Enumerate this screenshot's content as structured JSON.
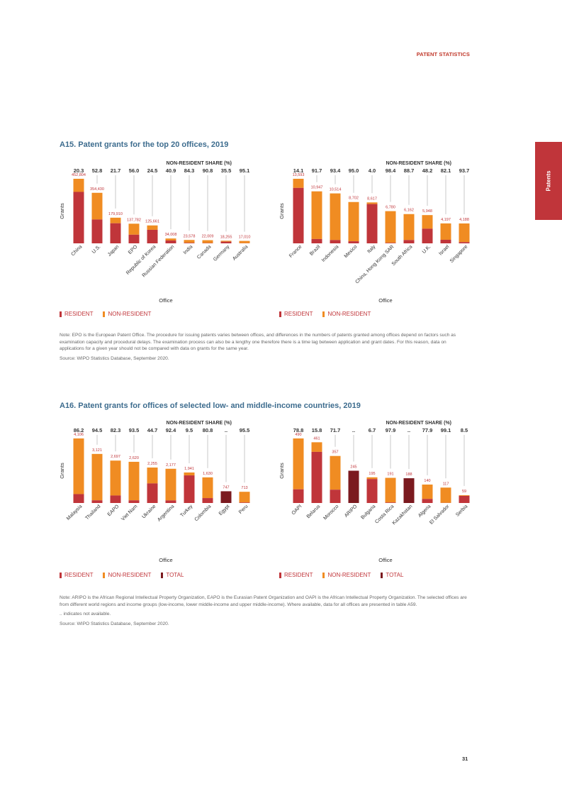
{
  "header": {
    "label": "PATENT STATISTICS"
  },
  "side_tab": {
    "label": "Patents"
  },
  "colors": {
    "resident": "#c0353a",
    "non_resident": "#f08c22",
    "total": "#7b1a1f",
    "title": "#3d6c8e",
    "axis": "#999999"
  },
  "sections": {
    "a15": {
      "title": "A15. Patent grants for the top 20 offices, 2019"
    },
    "a16": {
      "title": "A16. Patent grants for offices of selected low- and middle-income countries, 2019"
    }
  },
  "chart_data": [
    {
      "id": "a15_left",
      "type": "bar",
      "stacked": true,
      "share_title": "NON-RESIDENT SHARE (%)",
      "ylabel": "Grants",
      "xlabel": "Office",
      "categories": [
        "China",
        "U.S.",
        "Japan",
        "EPO",
        "Republic of Korea",
        "Russian Federation",
        "India",
        "Canada",
        "Germany",
        "Australia"
      ],
      "totals": [
        452804,
        354430,
        179910,
        137782,
        125661,
        34008,
        23578,
        22009,
        18255,
        17010
      ],
      "total_labels": [
        "452,804",
        "354,430",
        "179,910",
        "137,782",
        "125,661",
        "34,008",
        "23,578",
        "22,009",
        "18,255",
        "17,010"
      ],
      "nonresident_share": [
        "20.3",
        "52.8",
        "21.7",
        "56.0",
        "24.5",
        "40.9",
        "84.3",
        "90.8",
        "35.5",
        "95.1"
      ],
      "legend": [
        "RESIDENT",
        "NON-RESIDENT"
      ]
    },
    {
      "id": "a15_right",
      "type": "bar",
      "stacked": true,
      "share_title": "NON-RESIDENT SHARE (%)",
      "ylabel": "Grants",
      "xlabel": "Office",
      "categories": [
        "France",
        "Brazil",
        "Indonesia",
        "Mexico",
        "Italy",
        "China, Hong Kong SAR",
        "South Africa",
        "U.K.",
        "Israel",
        "Singapore"
      ],
      "totals": [
        13593,
        10947,
        10514,
        8702,
        8617,
        6780,
        6162,
        5948,
        4197,
        4188
      ],
      "total_labels": [
        "13,593",
        "10,947",
        "10,514",
        "8,702",
        "8,617",
        "6,780",
        "6,162",
        "5,948",
        "4,197",
        "4,188"
      ],
      "nonresident_share": [
        "14.1",
        "91.7",
        "93.4",
        "95.0",
        "4.0",
        "98.4",
        "88.7",
        "48.2",
        "82.1",
        "93.7"
      ],
      "legend": [
        "RESIDENT",
        "NON-RESIDENT"
      ]
    },
    {
      "id": "a16_left",
      "type": "bar",
      "stacked": true,
      "share_title": "NON-RESIDENT SHARE (%)",
      "ylabel": "Grants",
      "xlabel": "Office",
      "categories": [
        "Malaysia",
        "Thailand",
        "EAPO",
        "Viet Nam",
        "Ukraine",
        "Argentina",
        "Turkey",
        "Colombia",
        "Egypt",
        "Peru"
      ],
      "totals": [
        4106,
        3121,
        2697,
        2620,
        2255,
        2177,
        1941,
        1630,
        747,
        713
      ],
      "total_labels": [
        "4,106",
        "3,121",
        "2,697",
        "2,620",
        "2,255",
        "2,177",
        "1,941",
        "1,630",
        "747",
        "713"
      ],
      "nonresident_share": [
        "86.2",
        "94.5",
        "82.3",
        "93.5",
        "44.7",
        "92.4",
        "9.5",
        "80.8",
        "..",
        "95.5"
      ],
      "legend": [
        "RESIDENT",
        "NON-RESIDENT",
        "TOTAL"
      ]
    },
    {
      "id": "a16_right",
      "type": "bar",
      "stacked": true,
      "share_title": "NON-RESIDENT SHARE (%)",
      "ylabel": "Grants",
      "xlabel": "Office",
      "categories": [
        "OAPI",
        "Belarus",
        "Morocco",
        "ARIPO",
        "Bulgaria",
        "Costa Rica",
        "Kazakhstan",
        "Algeria",
        "El Salvador",
        "Serbia"
      ],
      "totals": [
        490,
        461,
        357,
        245,
        195,
        191,
        188,
        140,
        117,
        59
      ],
      "total_labels": [
        "490",
        "461",
        "357",
        "245",
        "195",
        "191",
        "188",
        "140",
        "117",
        "59"
      ],
      "nonresident_share": [
        "78.8",
        "15.8",
        "71.7",
        "..",
        "6.7",
        "97.9",
        "..",
        "77.9",
        "99.1",
        "8.5"
      ],
      "legend": [
        "RESIDENT",
        "NON-RESIDENT",
        "TOTAL"
      ]
    }
  ],
  "notes": {
    "a15": {
      "note": "Note: EPO is the European Patent Office. The procedure for issuing patents varies between offices, and differences in the numbers of patents granted among offices depend on factors such as examination capacity and procedural delays. The examination process can also be a lengthy one therefore there is a time lag between application and grant dates. For this reason, data on applications for a given year should not be compared with data on grants for the same year.",
      "source": "Source: WIPO Statistics Database, September 2020."
    },
    "a16": {
      "note": "Note: ARIPO is the African Regional Intellectual Property Organization, EAPO is the Eurasian Patent Organization and OAPI is the African Intellectual Property Organization. The selected offices are from different world regions and income groups (low-income, lower middle-income and upper middle-income). Where available, data for all offices are presented in table A59.",
      "na": ".. indicates not available.",
      "source": "Source: WIPO Statistics Database, September 2020."
    }
  },
  "page_number": "31"
}
